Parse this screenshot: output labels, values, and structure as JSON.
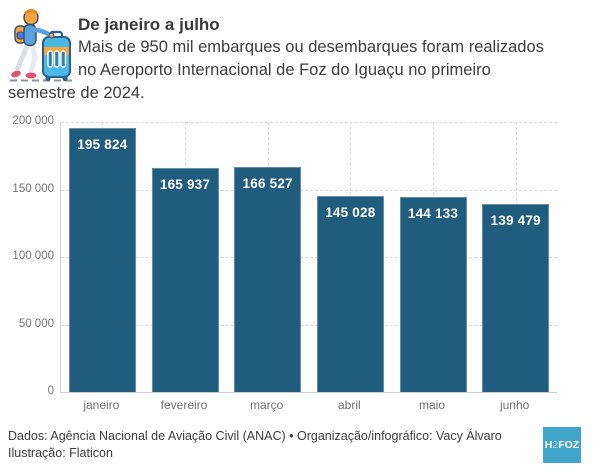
{
  "header": {
    "title": "De janeiro a julho",
    "subtitle_lines": [
      "Mais de 950 mil embarques ou desembarques foram realizados",
      "no Aeroporto Internacional de Foz do Iguaçu no primeiro",
      "semestre de 2024."
    ],
    "illustration": "traveler-with-suitcase-icon"
  },
  "chart_data": {
    "type": "bar",
    "title": "De janeiro a julho",
    "xlabel": "",
    "ylabel": "",
    "categories": [
      "janeiro",
      "fevereiro",
      "março",
      "abril",
      "maio",
      "junho"
    ],
    "values": [
      195824,
      165937,
      166527,
      145028,
      144133,
      139479
    ],
    "value_labels": [
      "195 824",
      "165 937",
      "166 527",
      "145 028",
      "144 133",
      "139 479"
    ],
    "ylim": [
      0,
      200000
    ],
    "y_ticks": [
      0,
      50000,
      100000,
      150000,
      200000
    ],
    "y_tick_labels": [
      "0",
      "50 000",
      "100 000",
      "150 000",
      "200 000"
    ],
    "grid": "dashed horizontal gridlines at y ticks and vertical gridlines at category centers",
    "legend": "none",
    "bar_color": "#1f5c7e",
    "bar_border_color": "#628ea8",
    "value_label_color": "#ffffff"
  },
  "footer": {
    "credit_line1": "Dados: Agência Nacional de Aviação Civil (ANAC) • Organização/infográfico: Vacy Álvaro",
    "credit_line2": "Ilustração: Flaticon",
    "logo": {
      "part1": "H",
      "part2": "2",
      "part3": "FOZ",
      "bg_color": "#41a5c9",
      "accent_color": "#aadcef"
    }
  }
}
